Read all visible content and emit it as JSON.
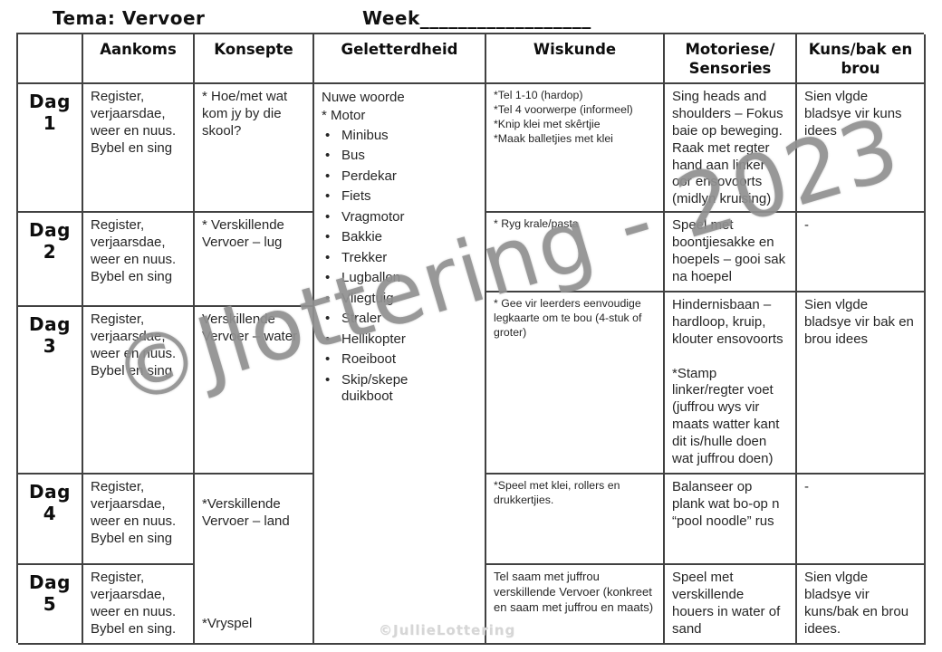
{
  "page": {
    "tema": "Tema: Vervoer",
    "week": "Week__________________",
    "watermark_diagonal": "©Jlottering - 2023",
    "watermark_bottom": "©JullieLottering"
  },
  "table": {
    "headers": {
      "day": "",
      "aankoms": "Aankoms",
      "konsepte": "Konsepte",
      "geletterdheid": "Geletterdheid",
      "wiskunde": "Wiskunde",
      "motoriese": "Motoriese/\nSensories",
      "kuns": "Kuns/bak en\nbrou"
    },
    "rows": {
      "dag1": {
        "label": "Dag 1",
        "aankoms": "Register, verjaarsdae, weer en nuus. Bybel en sing",
        "konsepte": "* Hoe/met wat kom jy by die skool?",
        "wiskunde": "*Tel 1-10 (hardop)\n*Tel 4 voorwerpe (informeel)\n*Knip klei met skêrtjie\n*Maak balletjies met klei",
        "motoriese": "Sing heads and shoulders – Fokus baie op beweging. Raak met regter hand aan linker oor ensovoorts (midlyn kruising)",
        "kuns": "Sien vlgde bladsye vir kuns idees"
      },
      "dag2": {
        "label": "Dag 2",
        "aankoms": "Register, verjaarsdae, weer en nuus. Bybel en sing",
        "konsepte": "* Verskillende Vervoer – lug",
        "wiskunde": "* Ryg krale/pasta",
        "motoriese": "Speel met boontjiesakke en hoepels – gooi sak na hoepel",
        "kuns": "-"
      },
      "dag3": {
        "label": "Dag 3",
        "aankoms": "Register, verjaarsdae, weer en nuus. Bybel en sing",
        "konsepte": "Verskillende Vervoer – water",
        "wiskunde": "* Gee vir leerders eenvoudige legkaarte om te bou (4-stuk of groter)",
        "motoriese": "Hindernisbaan – hardloop, kruip, klouter ensovoorts\n\n*Stamp linker/regter voet (juffrou wys vir maats watter kant dit is/hulle doen wat juffrou doen)",
        "kuns": "Sien vlgde bladsye vir bak en brou idees"
      },
      "dag4": {
        "label": "Dag 4",
        "aankoms": "Register, verjaarsdae, weer en nuus. Bybel en sing",
        "wiskunde": "*Speel met klei, rollers en drukkertjies.",
        "motoriese": "Balanseer op plank wat bo-op n “pool noodle” rus",
        "kuns": "-"
      },
      "dag5": {
        "label": "Dag 5",
        "aankoms": "Register, verjaarsdae, weer en nuus. Bybel en sing.",
        "wiskunde": "Tel saam met juffrou verskillende Vervoer (konkreet en saam met juffrou en maats)",
        "motoriese": "Speel met verskillende houers in water of sand",
        "kuns": "Sien vlgde bladsye vir kuns/bak en brou idees."
      }
    },
    "konsepte_dag45": {
      "line1": "*Verskillende Vervoer – land",
      "line2": "*Vryspel"
    },
    "geletterdheid": {
      "intro": "Nuwe woorde\n* Motor",
      "items": [
        "Minibus",
        "Bus",
        "Perdekar",
        "Fiets",
        "Vragmotor",
        "Bakkie",
        "Trekker",
        "Lugballon",
        "Vliegtuig",
        "Straler",
        "Hellikopter",
        "Roeiboot",
        "Skip/skepe\nduikboot"
      ]
    }
  }
}
